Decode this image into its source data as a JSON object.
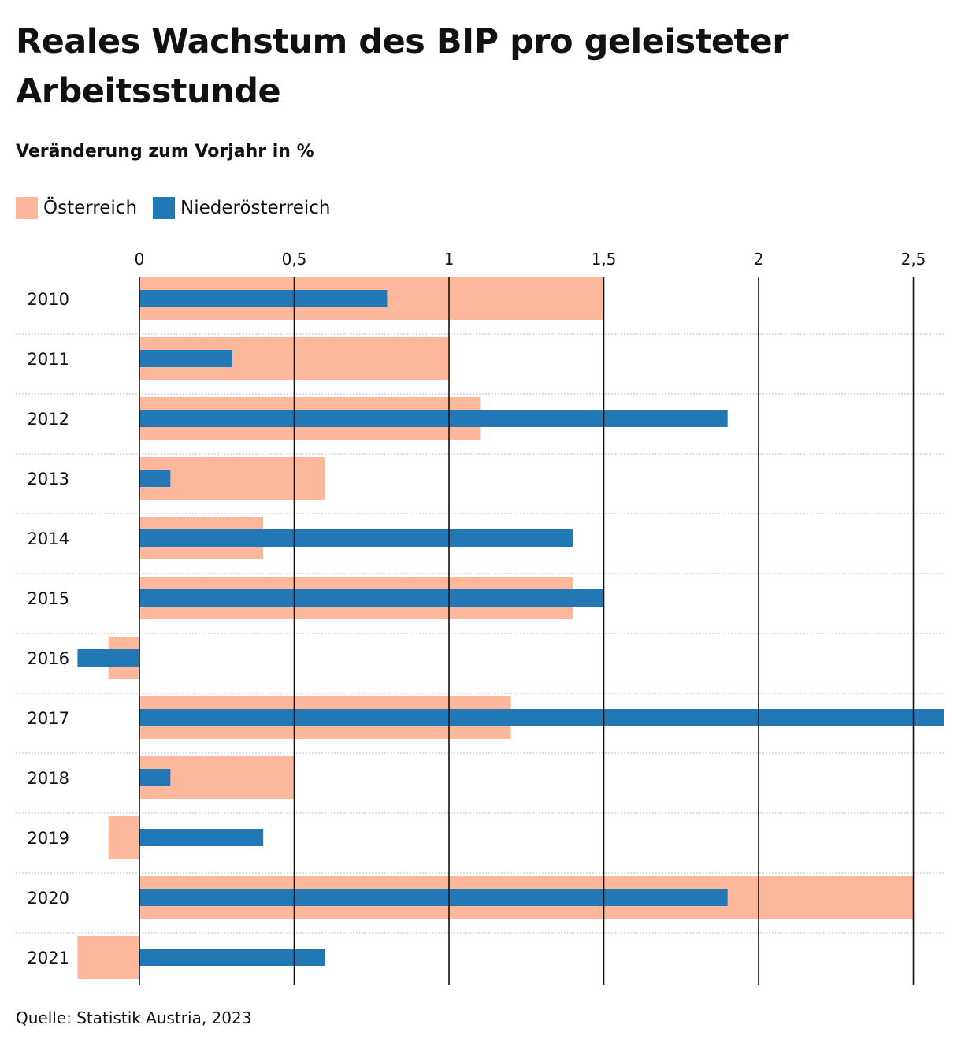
{
  "title": "Reales Wachstum des BIP pro geleisteter Arbeitsstunde",
  "subtitle": "Veränderung zum Vorjahr in %",
  "source": "Quelle: Statistik Austria, 2023",
  "colors": {
    "oesterreich": "#fdb89b",
    "niederoesterreich": "#2278b5",
    "grid": "#111111",
    "row_divider": "#bbbbbb"
  },
  "chart_data": {
    "type": "bar",
    "orientation": "horizontal",
    "categories": [
      "2010",
      "2011",
      "2012",
      "2013",
      "2014",
      "2015",
      "2016",
      "2017",
      "2018",
      "2019",
      "2020",
      "2021"
    ],
    "series": [
      {
        "name": "Österreich",
        "values": [
          1.5,
          1.0,
          1.1,
          0.6,
          0.4,
          1.4,
          -0.1,
          1.2,
          0.5,
          -0.1,
          2.5,
          -0.2
        ]
      },
      {
        "name": "Niederösterreich",
        "values": [
          0.8,
          0.3,
          1.9,
          0.1,
          1.4,
          1.5,
          -0.2,
          2.6,
          0.1,
          0.4,
          1.9,
          0.6
        ]
      }
    ],
    "x_ticks": [
      0,
      0.5,
      1,
      1.5,
      2,
      2.5
    ],
    "x_tick_labels": [
      "0",
      "0,5",
      "1",
      "1,5",
      "2",
      "2,5"
    ],
    "xlim": [
      -0.2,
      2.6
    ],
    "grid": true,
    "legend_position": "top-left"
  }
}
